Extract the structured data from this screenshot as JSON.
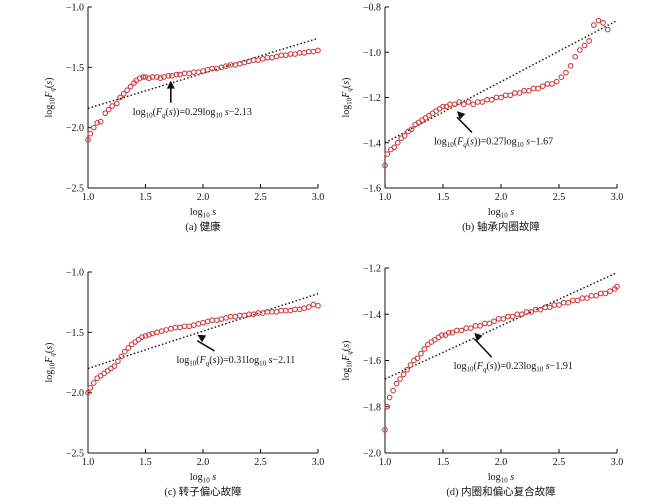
{
  "chart_data": [
    {
      "type": "scatter",
      "caption": "(a) 健康",
      "xlabel": "log10 s",
      "ylabel": "log10 Fq(s)",
      "xlim": [
        1.0,
        3.0
      ],
      "ylim": [
        -2.5,
        -1.0
      ],
      "xticks": [
        "1.0",
        "1.5",
        "2.0",
        "2.5",
        "3.0"
      ],
      "yticks": [
        "−1.0",
        "−1.5",
        "−2.0",
        "−2.5"
      ],
      "fit": {
        "slope": 0.29,
        "intercept": -2.13,
        "label": "log10(Fq(s))=0.29log10 s−2.13"
      },
      "annotation": {
        "x": 1.72,
        "y": -1.86,
        "tip_x": 1.72,
        "tip_y": -1.61
      },
      "points": [
        [
          1.0,
          -2.1
        ],
        [
          1.02,
          -2.05
        ],
        [
          1.05,
          -2.0
        ],
        [
          1.08,
          -1.96
        ],
        [
          1.11,
          -1.95
        ],
        [
          1.15,
          -1.88
        ],
        [
          1.18,
          -1.85
        ],
        [
          1.21,
          -1.82
        ],
        [
          1.25,
          -1.8
        ],
        [
          1.28,
          -1.75
        ],
        [
          1.31,
          -1.72
        ],
        [
          1.34,
          -1.69
        ],
        [
          1.37,
          -1.66
        ],
        [
          1.4,
          -1.63
        ],
        [
          1.42,
          -1.61
        ],
        [
          1.45,
          -1.59
        ],
        [
          1.48,
          -1.58
        ],
        [
          1.5,
          -1.58
        ],
        [
          1.53,
          -1.59
        ],
        [
          1.56,
          -1.58
        ],
        [
          1.6,
          -1.58
        ],
        [
          1.63,
          -1.59
        ],
        [
          1.66,
          -1.58
        ],
        [
          1.7,
          -1.57
        ],
        [
          1.73,
          -1.57
        ],
        [
          1.77,
          -1.56
        ],
        [
          1.8,
          -1.56
        ],
        [
          1.84,
          -1.55
        ],
        [
          1.88,
          -1.55
        ],
        [
          1.92,
          -1.54
        ],
        [
          1.96,
          -1.54
        ],
        [
          2.0,
          -1.53
        ],
        [
          2.04,
          -1.52
        ],
        [
          2.08,
          -1.51
        ],
        [
          2.12,
          -1.51
        ],
        [
          2.16,
          -1.5
        ],
        [
          2.2,
          -1.49
        ],
        [
          2.24,
          -1.48
        ],
        [
          2.28,
          -1.48
        ],
        [
          2.32,
          -1.47
        ],
        [
          2.36,
          -1.46
        ],
        [
          2.4,
          -1.45
        ],
        [
          2.44,
          -1.44
        ],
        [
          2.48,
          -1.44
        ],
        [
          2.52,
          -1.43
        ],
        [
          2.56,
          -1.42
        ],
        [
          2.6,
          -1.42
        ],
        [
          2.64,
          -1.41
        ],
        [
          2.68,
          -1.4
        ],
        [
          2.72,
          -1.4
        ],
        [
          2.76,
          -1.39
        ],
        [
          2.8,
          -1.39
        ],
        [
          2.84,
          -1.38
        ],
        [
          2.88,
          -1.38
        ],
        [
          2.92,
          -1.37
        ],
        [
          2.96,
          -1.37
        ],
        [
          3.0,
          -1.36
        ]
      ]
    },
    {
      "type": "scatter",
      "caption": "(b) 轴承内圈故障",
      "xlabel": "log10 s",
      "ylabel": "log10 Fq(s)",
      "xlim": [
        1.0,
        3.0
      ],
      "ylim": [
        -1.6,
        -0.8
      ],
      "xticks": [
        "1.0",
        "1.5",
        "2.0",
        "2.5",
        "3.0"
      ],
      "yticks": [
        "−0.8",
        "−1.0",
        "−1.2",
        "−1.4",
        "−1.6"
      ],
      "fit": {
        "slope": 0.27,
        "intercept": -1.67,
        "label": "log10(Fq(s))=0.27log10 s−1.67"
      },
      "annotation": {
        "x": 1.75,
        "y": -1.39,
        "tip_x": 1.62,
        "tip_y": -1.26
      },
      "points": [
        [
          1.0,
          -1.5
        ],
        [
          1.02,
          -1.45
        ],
        [
          1.05,
          -1.43
        ],
        [
          1.08,
          -1.42
        ],
        [
          1.11,
          -1.4
        ],
        [
          1.14,
          -1.38
        ],
        [
          1.17,
          -1.37
        ],
        [
          1.2,
          -1.35
        ],
        [
          1.23,
          -1.34
        ],
        [
          1.26,
          -1.32
        ],
        [
          1.29,
          -1.31
        ],
        [
          1.32,
          -1.3
        ],
        [
          1.35,
          -1.29
        ],
        [
          1.38,
          -1.28
        ],
        [
          1.41,
          -1.27
        ],
        [
          1.44,
          -1.26
        ],
        [
          1.47,
          -1.25
        ],
        [
          1.5,
          -1.24
        ],
        [
          1.53,
          -1.24
        ],
        [
          1.56,
          -1.23
        ],
        [
          1.6,
          -1.23
        ],
        [
          1.64,
          -1.22
        ],
        [
          1.68,
          -1.23
        ],
        [
          1.72,
          -1.22
        ],
        [
          1.76,
          -1.23
        ],
        [
          1.8,
          -1.22
        ],
        [
          1.84,
          -1.22
        ],
        [
          1.88,
          -1.21
        ],
        [
          1.92,
          -1.21
        ],
        [
          1.96,
          -1.2
        ],
        [
          2.0,
          -1.2
        ],
        [
          2.04,
          -1.19
        ],
        [
          2.08,
          -1.19
        ],
        [
          2.12,
          -1.18
        ],
        [
          2.16,
          -1.18
        ],
        [
          2.2,
          -1.17
        ],
        [
          2.24,
          -1.17
        ],
        [
          2.28,
          -1.16
        ],
        [
          2.32,
          -1.16
        ],
        [
          2.36,
          -1.15
        ],
        [
          2.4,
          -1.14
        ],
        [
          2.44,
          -1.14
        ],
        [
          2.48,
          -1.13
        ],
        [
          2.52,
          -1.11
        ],
        [
          2.56,
          -1.09
        ],
        [
          2.6,
          -1.06
        ],
        [
          2.64,
          -1.02
        ],
        [
          2.68,
          -0.99
        ],
        [
          2.72,
          -0.97
        ],
        [
          2.76,
          -0.95
        ],
        [
          2.8,
          -0.88
        ],
        [
          2.84,
          -0.86
        ],
        [
          2.88,
          -0.87
        ],
        [
          2.92,
          -0.9
        ]
      ]
    },
    {
      "type": "scatter",
      "caption": "(c) 转子偏心故障",
      "xlabel": "log10 s",
      "ylabel": "log10 Fq(s)",
      "xlim": [
        1.0,
        3.0
      ],
      "ylim": [
        -2.5,
        -1.0
      ],
      "xticks": [
        "1.0",
        "1.5",
        "2.0",
        "2.5",
        "3.0"
      ],
      "yticks": [
        "−1.0",
        "−1.5",
        "−2.0",
        "−2.5"
      ],
      "fit": {
        "slope": 0.31,
        "intercept": -2.11,
        "label": "log10(Fq(s))=0.31log10 s−2.11"
      },
      "annotation": {
        "x": 2.1,
        "y": -1.72,
        "tip_x": 1.95,
        "tip_y": -1.52
      },
      "points": [
        [
          1.0,
          -2.0
        ],
        [
          1.02,
          -1.96
        ],
        [
          1.05,
          -1.92
        ],
        [
          1.08,
          -1.88
        ],
        [
          1.11,
          -1.86
        ],
        [
          1.14,
          -1.84
        ],
        [
          1.17,
          -1.82
        ],
        [
          1.2,
          -1.8
        ],
        [
          1.23,
          -1.78
        ],
        [
          1.26,
          -1.74
        ],
        [
          1.29,
          -1.7
        ],
        [
          1.32,
          -1.66
        ],
        [
          1.35,
          -1.63
        ],
        [
          1.38,
          -1.6
        ],
        [
          1.41,
          -1.58
        ],
        [
          1.44,
          -1.56
        ],
        [
          1.47,
          -1.54
        ],
        [
          1.5,
          -1.53
        ],
        [
          1.53,
          -1.52
        ],
        [
          1.56,
          -1.51
        ],
        [
          1.6,
          -1.5
        ],
        [
          1.64,
          -1.49
        ],
        [
          1.68,
          -1.48
        ],
        [
          1.72,
          -1.47
        ],
        [
          1.76,
          -1.46
        ],
        [
          1.8,
          -1.46
        ],
        [
          1.84,
          -1.45
        ],
        [
          1.88,
          -1.45
        ],
        [
          1.92,
          -1.44
        ],
        [
          1.96,
          -1.43
        ],
        [
          2.0,
          -1.42
        ],
        [
          2.04,
          -1.41
        ],
        [
          2.08,
          -1.4
        ],
        [
          2.12,
          -1.4
        ],
        [
          2.16,
          -1.39
        ],
        [
          2.2,
          -1.38
        ],
        [
          2.24,
          -1.37
        ],
        [
          2.28,
          -1.37
        ],
        [
          2.32,
          -1.36
        ],
        [
          2.36,
          -1.36
        ],
        [
          2.4,
          -1.35
        ],
        [
          2.44,
          -1.35
        ],
        [
          2.48,
          -1.34
        ],
        [
          2.52,
          -1.34
        ],
        [
          2.56,
          -1.33
        ],
        [
          2.6,
          -1.33
        ],
        [
          2.64,
          -1.33
        ],
        [
          2.68,
          -1.32
        ],
        [
          2.72,
          -1.32
        ],
        [
          2.76,
          -1.32
        ],
        [
          2.8,
          -1.31
        ],
        [
          2.84,
          -1.31
        ],
        [
          2.88,
          -1.3
        ],
        [
          2.92,
          -1.29
        ],
        [
          2.96,
          -1.27
        ],
        [
          3.0,
          -1.28
        ]
      ]
    },
    {
      "type": "scatter",
      "caption": "(d) 内圈和偏心复合故障",
      "xlabel": "log10 s",
      "ylabel": "log10 Fq(s)",
      "xlim": [
        1.0,
        3.0
      ],
      "ylim": [
        -2.0,
        -1.2
      ],
      "xticks": [
        "1.0",
        "1.5",
        "2.0",
        "2.5",
        "3.0"
      ],
      "yticks": [
        "−1.2",
        "−1.4",
        "−1.6",
        "−1.8",
        "−2.0"
      ],
      "fit": {
        "slope": 0.23,
        "intercept": -1.91,
        "label": "log10(Fq(s))=0.23log10 s−1.91"
      },
      "annotation": {
        "x": 1.92,
        "y": -1.62,
        "tip_x": 1.77,
        "tip_y": -1.48
      },
      "points": [
        [
          1.0,
          -1.9
        ],
        [
          1.02,
          -1.8
        ],
        [
          1.04,
          -1.76
        ],
        [
          1.07,
          -1.73
        ],
        [
          1.1,
          -1.7
        ],
        [
          1.13,
          -1.68
        ],
        [
          1.16,
          -1.66
        ],
        [
          1.19,
          -1.64
        ],
        [
          1.22,
          -1.62
        ],
        [
          1.25,
          -1.6
        ],
        [
          1.28,
          -1.59
        ],
        [
          1.31,
          -1.57
        ],
        [
          1.34,
          -1.55
        ],
        [
          1.37,
          -1.53
        ],
        [
          1.4,
          -1.52
        ],
        [
          1.43,
          -1.51
        ],
        [
          1.46,
          -1.5
        ],
        [
          1.49,
          -1.49
        ],
        [
          1.52,
          -1.49
        ],
        [
          1.55,
          -1.48
        ],
        [
          1.58,
          -1.48
        ],
        [
          1.62,
          -1.47
        ],
        [
          1.66,
          -1.47
        ],
        [
          1.7,
          -1.46
        ],
        [
          1.74,
          -1.46
        ],
        [
          1.78,
          -1.45
        ],
        [
          1.82,
          -1.45
        ],
        [
          1.86,
          -1.44
        ],
        [
          1.9,
          -1.44
        ],
        [
          1.94,
          -1.43
        ],
        [
          1.98,
          -1.42
        ],
        [
          2.02,
          -1.42
        ],
        [
          2.06,
          -1.41
        ],
        [
          2.1,
          -1.41
        ],
        [
          2.14,
          -1.4
        ],
        [
          2.18,
          -1.4
        ],
        [
          2.22,
          -1.39
        ],
        [
          2.26,
          -1.39
        ],
        [
          2.3,
          -1.38
        ],
        [
          2.34,
          -1.38
        ],
        [
          2.38,
          -1.37
        ],
        [
          2.42,
          -1.37
        ],
        [
          2.46,
          -1.36
        ],
        [
          2.5,
          -1.36
        ],
        [
          2.54,
          -1.35
        ],
        [
          2.58,
          -1.35
        ],
        [
          2.62,
          -1.34
        ],
        [
          2.66,
          -1.34
        ],
        [
          2.7,
          -1.33
        ],
        [
          2.74,
          -1.33
        ],
        [
          2.78,
          -1.32
        ],
        [
          2.82,
          -1.32
        ],
        [
          2.86,
          -1.31
        ],
        [
          2.9,
          -1.31
        ],
        [
          2.94,
          -1.3
        ],
        [
          2.98,
          -1.29
        ],
        [
          3.0,
          -1.28
        ]
      ]
    }
  ]
}
